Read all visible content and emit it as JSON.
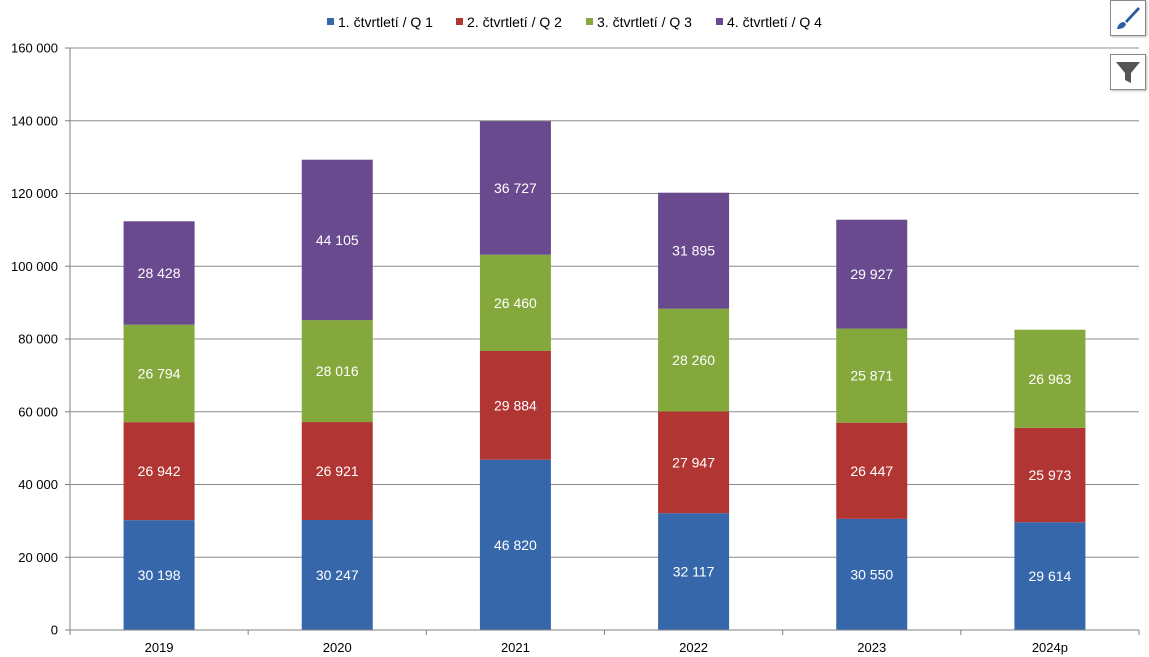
{
  "chart_data": {
    "type": "bar",
    "stacked": true,
    "categories": [
      "2019",
      "2020",
      "2021",
      "2022",
      "2023",
      "2024p"
    ],
    "series": [
      {
        "name": "1. čtvrtletí / Q 1",
        "color": "#3767AB",
        "values": [
          30198,
          30247,
          46820,
          32117,
          30550,
          29614
        ],
        "labels": [
          "30 198",
          "30 247",
          "46 820",
          "32 117",
          "30 550",
          "29 614"
        ]
      },
      {
        "name": "2. čtvrtletí / Q 2",
        "color": "#B13533",
        "values": [
          26942,
          26921,
          29884,
          27947,
          26447,
          25973
        ],
        "labels": [
          "26 942",
          "26 921",
          "29 884",
          "27 947",
          "26 447",
          "25 973"
        ]
      },
      {
        "name": "3. čtvrtletí / Q 3",
        "color": "#84A83C",
        "values": [
          26794,
          28016,
          26460,
          28260,
          25871,
          26963
        ],
        "labels": [
          "26 794",
          "28 016",
          "26 460",
          "28 260",
          "25 871",
          "26 963"
        ]
      },
      {
        "name": "4. čtvrtletí / Q 4",
        "color": "#6A4A8E",
        "values": [
          28428,
          44105,
          36727,
          31895,
          29927,
          null
        ],
        "labels": [
          "28 428",
          "44 105",
          "36 727",
          "31 895",
          "29 927",
          null
        ]
      }
    ],
    "yticks": [
      0,
      20000,
      40000,
      60000,
      80000,
      100000,
      120000,
      140000,
      160000
    ],
    "ytick_labels": [
      "0",
      "20 000",
      "40 000",
      "60 000",
      "80 000",
      "100 000",
      "120 000",
      "140 000",
      "160 000"
    ],
    "ylim": [
      0,
      160000
    ],
    "grid": true,
    "legend_position": "top"
  },
  "toolbar": {
    "style_icon": "paintbrush-icon",
    "filter_icon": "funnel-icon"
  }
}
